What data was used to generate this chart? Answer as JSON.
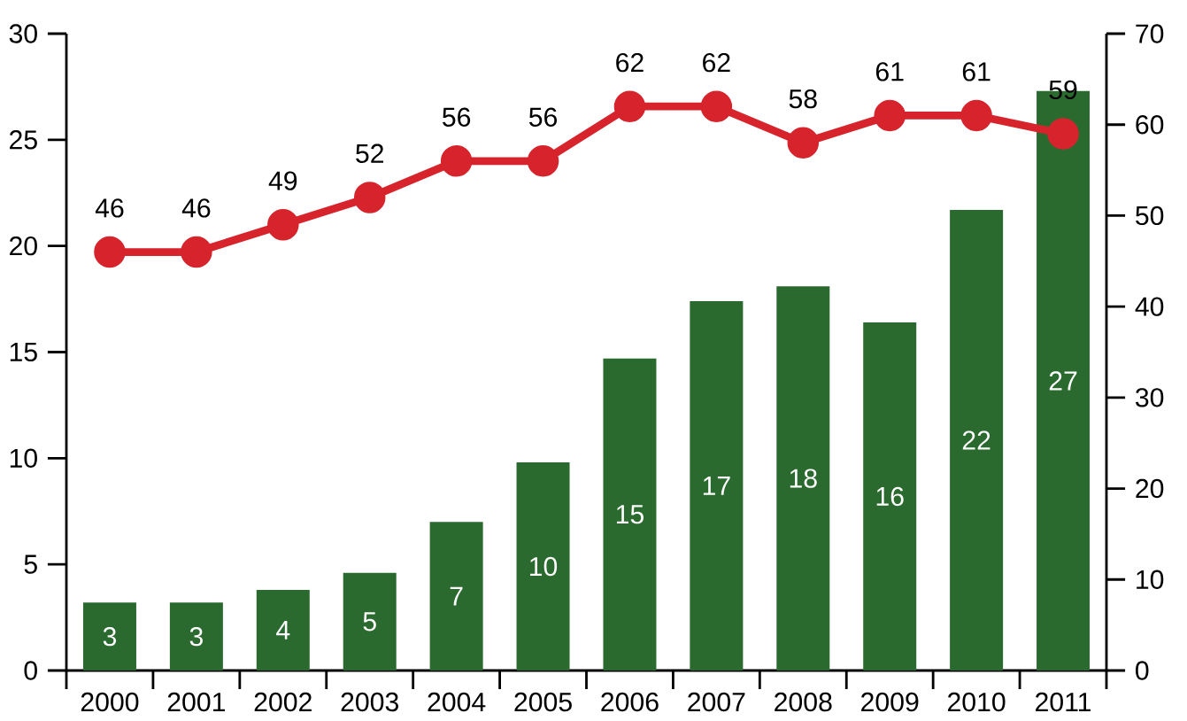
{
  "chart_data": {
    "type": "bar",
    "categories": [
      "2000",
      "2001",
      "2002",
      "2003",
      "2004",
      "2005",
      "2006",
      "2007",
      "2008",
      "2009",
      "2010",
      "2011"
    ],
    "series": [
      {
        "color": "#2b6a2f",
        "values": [
          3.2,
          3.2,
          3.8,
          4.6,
          7.0,
          9.8,
          14.7,
          17.4,
          18.1,
          16.4,
          21.7,
          27.3
        ],
        "value_labels": [
          "3",
          "3",
          "4",
          "5",
          "7",
          "10",
          "15",
          "17",
          "18",
          "16",
          "22",
          "27"
        ]
      },
      {
        "type": "line",
        "axis": "y2",
        "color": "#d7232b",
        "marker": "circle",
        "values": [
          46,
          46,
          49,
          52,
          56,
          56,
          62,
          62,
          58,
          61,
          61,
          59
        ],
        "value_labels": [
          "46",
          "46",
          "49",
          "52",
          "56",
          "56",
          "62",
          "62",
          "58",
          "61",
          "61",
          "59"
        ]
      }
    ],
    "ylim": [
      0,
      30
    ],
    "yticks": [
      0,
      5,
      10,
      15,
      20,
      25,
      30
    ],
    "y2lim": [
      0,
      70
    ],
    "y2ticks": [
      0,
      10,
      20,
      30,
      40,
      50,
      60,
      70
    ]
  }
}
